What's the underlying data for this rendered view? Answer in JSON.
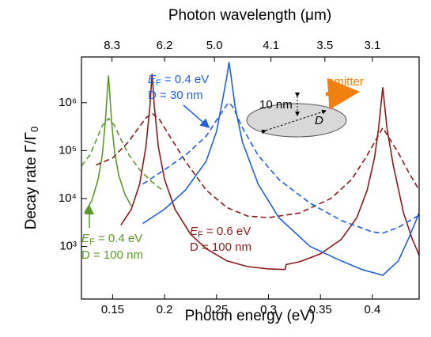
{
  "chart_data": {
    "type": "line",
    "xlabel": "Photon energy (eV)",
    "x2label": "Photon wavelength (μm)",
    "ylabel": {
      "main": "Decay rate Γ/Γ",
      "sub": "0"
    },
    "xlim": [
      0.12,
      0.445
    ],
    "xticks": [
      0.15,
      {
        "value": 0.2,
        "label": "0.2"
      },
      0.25,
      {
        "value": 0.3,
        "label": "0.3"
      },
      0.35,
      {
        "value": 0.4,
        "label": "0.4"
      }
    ],
    "x2ticks": [
      {
        "value": 0.1494,
        "label": "8.3"
      },
      {
        "value": 0.2,
        "label": "6.2"
      },
      {
        "value": 0.248,
        "label": "5.0"
      },
      {
        "value": 0.3024,
        "label": "4.1"
      },
      {
        "value": 0.3543,
        "label": "3.5"
      },
      {
        "value": 0.4,
        "label": "3.1"
      }
    ],
    "ylog": true,
    "ylim": [
      80,
      9000000
    ],
    "yticks": [
      {
        "value": 1000,
        "label": "10³"
      },
      {
        "value": 10000,
        "label": "10⁴"
      },
      {
        "value": 100000,
        "label": "10⁵"
      },
      {
        "value": 1000000,
        "label": "10⁶"
      }
    ],
    "series": [
      {
        "color": "#5a9a2a",
        "dashed": false,
        "x": [
          0.123,
          0.13,
          0.136,
          0.14,
          0.143,
          0.145,
          0.146,
          0.147,
          0.149,
          0.152,
          0.156,
          0.162,
          0.168
        ],
        "values": [
          5000,
          9000,
          25000,
          80000,
          400000,
          1800000,
          3700000,
          1800000,
          400000,
          90000,
          30000,
          12000,
          7000
        ]
      },
      {
        "color": "#5a9a2a",
        "dashed": true,
        "x": [
          0.12,
          0.128,
          0.135,
          0.14,
          0.146,
          0.152,
          0.158,
          0.166,
          0.176,
          0.188,
          0.198
        ],
        "values": [
          48000,
          80000,
          180000,
          330000,
          470000,
          330000,
          170000,
          80000,
          40000,
          22000,
          15000
        ]
      },
      {
        "color": "#8b1a1a",
        "dashed": false,
        "x": [
          0.158,
          0.168,
          0.176,
          0.182,
          0.186,
          0.188,
          0.19,
          0.194,
          0.2,
          0.21,
          0.225,
          0.24,
          0.26,
          0.28,
          0.3,
          0.316,
          0.317,
          0.33,
          0.35,
          0.37,
          0.385,
          0.395,
          0.402,
          0.406,
          0.41,
          0.414,
          0.42,
          0.43,
          0.438,
          0.445
        ],
        "values": [
          2800,
          6000,
          20000,
          120000,
          900000,
          4000000,
          900000,
          120000,
          25000,
          6000,
          1800,
          900,
          500,
          380,
          340,
          330,
          420,
          480,
          700,
          1400,
          4000,
          15000,
          70000,
          300000,
          2100000,
          300000,
          50000,
          5000,
          1500,
          660
        ]
      },
      {
        "color": "#8b1a1a",
        "dashed": true,
        "x": [
          0.134,
          0.15,
          0.165,
          0.175,
          0.182,
          0.188,
          0.195,
          0.205,
          0.22,
          0.24,
          0.26,
          0.28,
          0.3,
          0.33,
          0.36,
          0.38,
          0.395,
          0.41,
          0.425,
          0.435,
          0.445
        ],
        "values": [
          50000,
          70000,
          150000,
          300000,
          480000,
          600000,
          450000,
          200000,
          60000,
          15000,
          6500,
          4300,
          4000,
          5000,
          10000,
          25000,
          80000,
          300000,
          90000,
          35000,
          15000
        ]
      },
      {
        "color": "#1f5fe0",
        "dashed": false,
        "x": [
          0.179,
          0.2,
          0.22,
          0.24,
          0.25,
          0.256,
          0.26,
          0.262,
          0.264,
          0.268,
          0.275,
          0.29,
          0.31,
          0.34,
          0.37,
          0.39,
          0.41,
          0.425,
          0.435,
          0.445
        ],
        "values": [
          3000,
          6000,
          15000,
          60000,
          250000,
          1200000,
          3500000,
          7000000,
          3500000,
          800000,
          150000,
          20000,
          4000,
          1000,
          500,
          330,
          250,
          500,
          1500,
          5000
        ]
      },
      {
        "color": "#1f5fe0",
        "dashed": true,
        "x": [
          0.179,
          0.2,
          0.22,
          0.24,
          0.252,
          0.26,
          0.262,
          0.266,
          0.275,
          0.29,
          0.31,
          0.34,
          0.37,
          0.4,
          0.41,
          0.425,
          0.445
        ],
        "values": [
          20000,
          40000,
          80000,
          200000,
          500000,
          900000,
          1000000,
          800000,
          300000,
          80000,
          25000,
          8000,
          3500,
          2000,
          1900,
          2500,
          4500
        ]
      }
    ],
    "annotations": {
      "blue": {
        "e": "E",
        "sub": "F",
        "rest": " = 0.4 eV",
        "d": "D = 30 nm"
      },
      "green": {
        "e": "E",
        "sub": "F",
        "rest": " = 0.4 eV",
        "d": "D = 100 nm"
      },
      "red": {
        "e": "E",
        "sub": "F",
        "rest": " = 0.6 eV",
        "d": "D = 100 nm"
      },
      "inset": {
        "emitter": "emitter",
        "gap": "10 nm",
        "d": "D"
      }
    }
  }
}
